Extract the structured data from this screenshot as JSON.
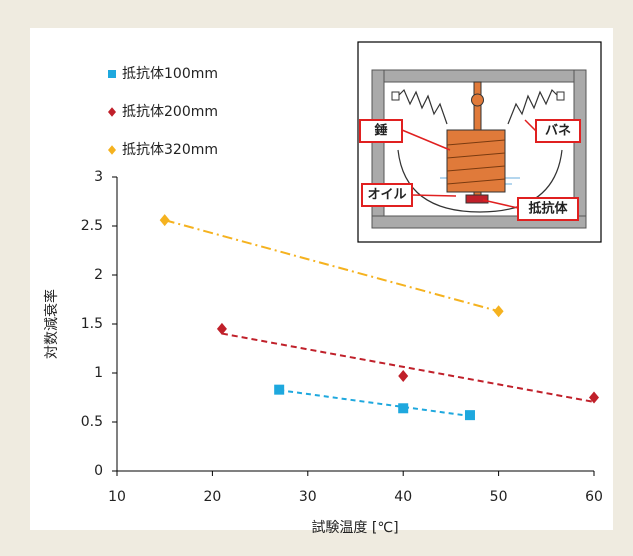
{
  "chart_data": {
    "type": "scatter",
    "xlabel": "試験温度 [℃]",
    "ylabel": "対数減衰率",
    "xlim": [
      10,
      60
    ],
    "xticks": [
      10,
      20,
      30,
      40,
      50,
      60
    ],
    "ylim": [
      0,
      3
    ],
    "yticks": [
      0,
      0.5,
      1,
      1.5,
      2,
      2.5,
      3
    ],
    "grid": false,
    "trendline": true,
    "legend": "upper left",
    "series": [
      {
        "name": "抵抗体100mm",
        "color": "#1ea8de",
        "marker": "square",
        "x": [
          27,
          40,
          47
        ],
        "values": [
          0.83,
          0.64,
          0.57
        ]
      },
      {
        "name": "抵抗体200mm",
        "color": "#c0202a",
        "marker": "diamond",
        "x": [
          21,
          40,
          60
        ],
        "values": [
          1.45,
          0.97,
          0.75
        ]
      },
      {
        "name": "抵抗体320mm",
        "color": "#f5b21f",
        "marker": "diamond",
        "x": [
          15,
          50
        ],
        "values": [
          2.56,
          1.63
        ]
      }
    ]
  },
  "inset": {
    "labels": [
      "錘",
      "バネ",
      "オイル",
      "抵抗体"
    ]
  }
}
